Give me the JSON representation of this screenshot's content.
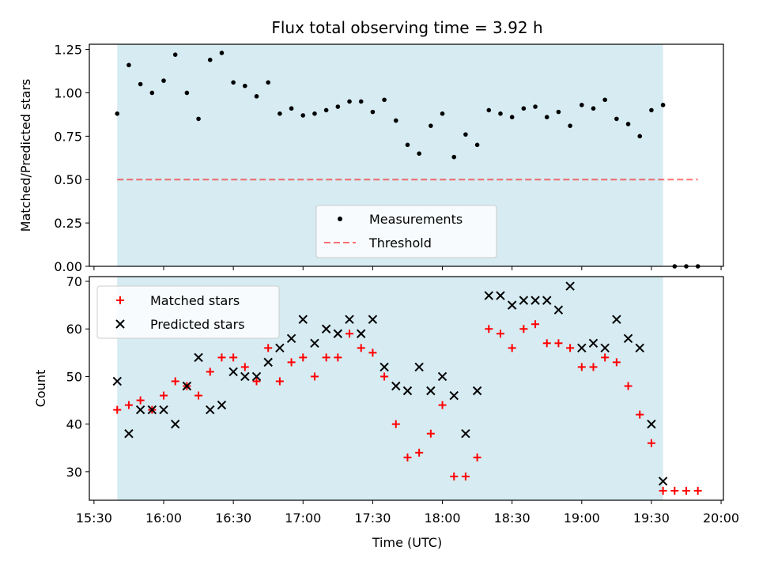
{
  "title": "Flux total observing time = 3.92 h",
  "colors": {
    "shade": "#add8e6",
    "threshold": "#ff0000",
    "measurement": "#000000",
    "matched": "#ff0000",
    "predicted": "#000000"
  },
  "chart_data": [
    {
      "type": "scatter",
      "ylabel": "Matched/Predicted stars",
      "ylim": [
        0,
        1.28
      ],
      "yticks": [
        0,
        0.25,
        0.5,
        0.75,
        1.0,
        1.25
      ],
      "ytick_labels": [
        "0.00",
        "0.25",
        "0.50",
        "0.75",
        "1.00",
        "1.25"
      ],
      "xlim": [
        "15:28",
        "20:01"
      ],
      "shaded_region": [
        "15:40",
        "19:35"
      ],
      "threshold": {
        "y": 0.5,
        "x": [
          "15:40",
          "19:50"
        ]
      },
      "legend": {
        "placement": "lower center",
        "entries": [
          "Measurements",
          "Threshold"
        ]
      },
      "series": [
        {
          "name": "Measurements",
          "x": [
            "15:40",
            "15:45",
            "15:50",
            "15:55",
            "16:00",
            "16:05",
            "16:10",
            "16:15",
            "16:20",
            "16:25",
            "16:30",
            "16:35",
            "16:40",
            "16:45",
            "16:50",
            "16:55",
            "17:00",
            "17:05",
            "17:10",
            "17:15",
            "17:20",
            "17:25",
            "17:30",
            "17:35",
            "17:40",
            "17:45",
            "17:50",
            "17:55",
            "18:00",
            "18:05",
            "18:10",
            "18:15",
            "18:20",
            "18:25",
            "18:30",
            "18:35",
            "18:40",
            "18:45",
            "18:50",
            "18:55",
            "19:00",
            "19:05",
            "19:10",
            "19:15",
            "19:20",
            "19:25",
            "19:30",
            "19:35",
            "19:40",
            "19:45",
            "19:50"
          ],
          "values": [
            0.88,
            1.16,
            1.05,
            1.0,
            1.07,
            1.22,
            1.0,
            0.85,
            1.19,
            1.23,
            1.06,
            1.04,
            0.98,
            1.06,
            0.88,
            0.91,
            0.87,
            0.88,
            0.9,
            0.92,
            0.95,
            0.95,
            0.89,
            0.96,
            0.84,
            0.7,
            0.65,
            0.81,
            0.88,
            0.63,
            0.76,
            0.7,
            0.9,
            0.88,
            0.86,
            0.91,
            0.92,
            0.86,
            0.89,
            0.81,
            0.93,
            0.91,
            0.96,
            0.85,
            0.82,
            0.75,
            0.9,
            0.93,
            0.0,
            0.0,
            0.0
          ]
        }
      ]
    },
    {
      "type": "scatter",
      "xlabel": "Time (UTC)",
      "ylabel": "Count",
      "ylim": [
        24,
        71
      ],
      "yticks": [
        30,
        40,
        50,
        60,
        70
      ],
      "xlim": [
        "15:28",
        "20:01"
      ],
      "xticks": [
        "15:30",
        "16:00",
        "16:30",
        "17:00",
        "17:30",
        "18:00",
        "18:30",
        "19:00",
        "19:30",
        "20:00"
      ],
      "shaded_region": [
        "15:40",
        "19:35"
      ],
      "legend": {
        "placement": "upper left",
        "entries": [
          "Matched stars",
          "Predicted stars"
        ]
      },
      "series": [
        {
          "name": "Matched stars",
          "x": [
            "15:40",
            "15:45",
            "15:50",
            "15:55",
            "16:00",
            "16:05",
            "16:10",
            "16:15",
            "16:20",
            "16:25",
            "16:30",
            "16:35",
            "16:40",
            "16:45",
            "16:50",
            "16:55",
            "17:00",
            "17:05",
            "17:10",
            "17:15",
            "17:20",
            "17:25",
            "17:30",
            "17:35",
            "17:40",
            "17:45",
            "17:50",
            "17:55",
            "18:00",
            "18:05",
            "18:10",
            "18:15",
            "18:20",
            "18:25",
            "18:30",
            "18:35",
            "18:40",
            "18:45",
            "18:50",
            "18:55",
            "19:00",
            "19:05",
            "19:10",
            "19:15",
            "19:20",
            "19:25",
            "19:30",
            "19:35",
            "19:40",
            "19:45",
            "19:50"
          ],
          "values": [
            43,
            44,
            45,
            43,
            46,
            49,
            48,
            46,
            51,
            54,
            54,
            52,
            49,
            56,
            49,
            53,
            54,
            50,
            54,
            54,
            59,
            56,
            55,
            50,
            40,
            33,
            34,
            38,
            44,
            29,
            29,
            33,
            60,
            59,
            56,
            60,
            61,
            57,
            57,
            56,
            52,
            52,
            54,
            53,
            48,
            42,
            36,
            26,
            26,
            26,
            26
          ]
        },
        {
          "name": "Predicted stars",
          "x": [
            "15:40",
            "15:45",
            "15:50",
            "15:55",
            "16:00",
            "16:05",
            "16:10",
            "16:15",
            "16:20",
            "16:25",
            "16:30",
            "16:35",
            "16:40",
            "16:45",
            "16:50",
            "16:55",
            "17:00",
            "17:05",
            "17:10",
            "17:15",
            "17:20",
            "17:25",
            "17:30",
            "17:35",
            "17:40",
            "17:45",
            "17:50",
            "17:55",
            "18:00",
            "18:05",
            "18:10",
            "18:15",
            "18:20",
            "18:25",
            "18:30",
            "18:35",
            "18:40",
            "18:45",
            "18:50",
            "18:55",
            "19:00",
            "19:05",
            "19:10",
            "19:15",
            "19:20",
            "19:25",
            "19:30",
            "19:35"
          ],
          "values": [
            49,
            38,
            43,
            43,
            43,
            40,
            48,
            54,
            43,
            44,
            51,
            50,
            50,
            53,
            56,
            58,
            62,
            57,
            60,
            59,
            62,
            59,
            62,
            52,
            48,
            47,
            52,
            47,
            50,
            46,
            38,
            47,
            67,
            67,
            65,
            66,
            66,
            66,
            64,
            69,
            56,
            57,
            56,
            62,
            58,
            56,
            40,
            28
          ]
        }
      ]
    }
  ]
}
